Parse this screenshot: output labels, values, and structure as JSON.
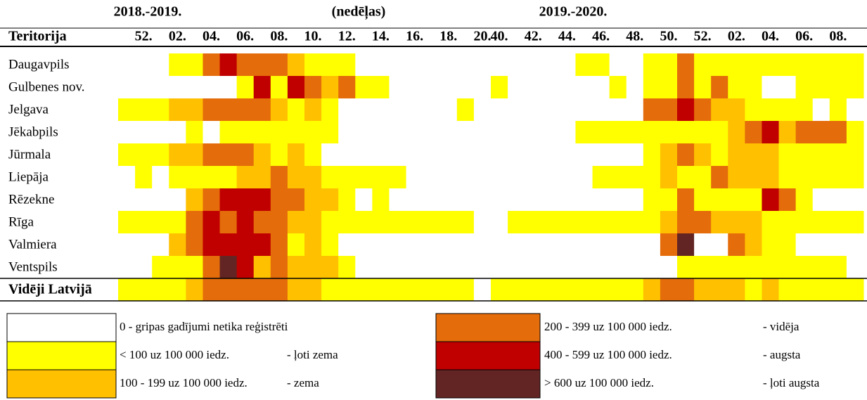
{
  "header": {
    "season1": "2018.-2019.",
    "unit": "(nedēļas)",
    "season2": "2019.-2020.",
    "territory": "Teritorija"
  },
  "weeks": [
    null,
    "52.",
    null,
    "02.",
    null,
    "04.",
    null,
    "06.",
    null,
    "08.",
    null,
    "10.",
    null,
    "12.",
    null,
    "14.",
    null,
    "16.",
    null,
    "18.",
    null,
    "20.",
    "40.",
    null,
    "42.",
    null,
    "44.",
    null,
    "46.",
    null,
    "48.",
    null,
    "50.",
    null,
    "52.",
    null,
    "02.",
    null,
    "04.",
    null,
    "06.",
    null,
    "08.",
    null
  ],
  "rows": [
    {
      "name": "Daugavpils",
      "levels": [
        0,
        0,
        0,
        1,
        1,
        3,
        4,
        3,
        3,
        3,
        2,
        1,
        1,
        1,
        0,
        0,
        0,
        0,
        0,
        0,
        0,
        0,
        0,
        0,
        0,
        0,
        0,
        1,
        1,
        0,
        0,
        1,
        1,
        3,
        1,
        1,
        1,
        1,
        1,
        1,
        1,
        1,
        1,
        1
      ]
    },
    {
      "name": "Gulbenes nov.",
      "levels": [
        0,
        0,
        0,
        0,
        0,
        0,
        0,
        1,
        4,
        1,
        4,
        3,
        2,
        3,
        1,
        1,
        0,
        0,
        0,
        0,
        0,
        0,
        1,
        0,
        0,
        0,
        0,
        0,
        0,
        1,
        0,
        1,
        1,
        3,
        1,
        3,
        1,
        1,
        0,
        0,
        1,
        1,
        1,
        1
      ]
    },
    {
      "name": "Jelgava",
      "levels": [
        1,
        1,
        1,
        2,
        2,
        3,
        3,
        3,
        3,
        2,
        1,
        2,
        1,
        0,
        0,
        0,
        0,
        0,
        0,
        0,
        1,
        0,
        0,
        0,
        0,
        0,
        0,
        0,
        0,
        0,
        0,
        3,
        3,
        4,
        3,
        2,
        2,
        1,
        1,
        1,
        1,
        0,
        1,
        0
      ]
    },
    {
      "name": "Jēkabpils",
      "levels": [
        0,
        0,
        0,
        0,
        1,
        0,
        1,
        1,
        1,
        1,
        1,
        1,
        1,
        0,
        0,
        0,
        0,
        0,
        0,
        0,
        0,
        0,
        0,
        0,
        0,
        0,
        0,
        1,
        1,
        1,
        1,
        1,
        1,
        1,
        1,
        1,
        2,
        3,
        4,
        2,
        3,
        3,
        3,
        1
      ]
    },
    {
      "name": "Jūrmala",
      "levels": [
        1,
        1,
        1,
        2,
        2,
        3,
        3,
        3,
        2,
        1,
        2,
        1,
        0,
        0,
        0,
        0,
        0,
        0,
        0,
        0,
        0,
        0,
        0,
        0,
        0,
        0,
        0,
        0,
        0,
        0,
        0,
        1,
        2,
        3,
        2,
        1,
        2,
        2,
        2,
        1,
        1,
        1,
        1,
        1
      ]
    },
    {
      "name": "Liepāja",
      "levels": [
        0,
        1,
        0,
        1,
        1,
        1,
        1,
        2,
        2,
        3,
        2,
        2,
        1,
        1,
        1,
        1,
        1,
        0,
        0,
        0,
        0,
        0,
        0,
        0,
        0,
        0,
        0,
        0,
        1,
        1,
        1,
        1,
        2,
        1,
        1,
        3,
        2,
        2,
        2,
        1,
        1,
        1,
        1,
        1
      ]
    },
    {
      "name": "Rēzekne",
      "levels": [
        0,
        0,
        0,
        0,
        2,
        3,
        4,
        4,
        4,
        3,
        3,
        2,
        2,
        1,
        0,
        1,
        0,
        0,
        0,
        0,
        0,
        0,
        0,
        0,
        0,
        0,
        0,
        0,
        0,
        0,
        0,
        1,
        1,
        3,
        1,
        1,
        1,
        1,
        4,
        3,
        1,
        0,
        0,
        0
      ]
    },
    {
      "name": "Rīga",
      "levels": [
        1,
        1,
        1,
        1,
        3,
        4,
        3,
        4,
        3,
        3,
        2,
        2,
        1,
        1,
        1,
        1,
        1,
        1,
        1,
        1,
        1,
        0,
        0,
        1,
        1,
        1,
        1,
        1,
        1,
        1,
        1,
        1,
        2,
        3,
        3,
        2,
        2,
        2,
        1,
        1,
        1,
        1,
        1,
        1
      ]
    },
    {
      "name": "Valmiera",
      "levels": [
        0,
        0,
        0,
        2,
        3,
        4,
        4,
        4,
        4,
        3,
        1,
        2,
        1,
        0,
        0,
        0,
        0,
        0,
        0,
        0,
        0,
        0,
        0,
        0,
        0,
        0,
        0,
        0,
        0,
        0,
        0,
        0,
        3,
        5,
        0,
        0,
        3,
        2,
        1,
        1,
        0,
        0,
        0,
        0
      ]
    },
    {
      "name": "Ventspils",
      "levels": [
        0,
        0,
        1,
        1,
        1,
        3,
        5,
        4,
        2,
        3,
        2,
        2,
        2,
        1,
        0,
        0,
        0,
        0,
        0,
        0,
        0,
        0,
        0,
        0,
        0,
        0,
        0,
        0,
        0,
        0,
        0,
        0,
        0,
        1,
        1,
        1,
        1,
        1,
        1,
        1,
        1,
        1,
        1,
        0
      ]
    }
  ],
  "average": {
    "name": "Vidēji Latvijā",
    "levels": [
      1,
      1,
      1,
      1,
      2,
      3,
      3,
      3,
      3,
      3,
      2,
      2,
      1,
      1,
      1,
      1,
      1,
      1,
      1,
      1,
      1,
      0,
      1,
      1,
      1,
      1,
      1,
      1,
      1,
      1,
      1,
      2,
      3,
      3,
      2,
      2,
      2,
      1,
      2,
      1,
      1,
      1,
      1,
      1
    ]
  },
  "legend": [
    {
      "color": "#FFFFFF",
      "range": "0 - gripas gadījumi netika reģistrēti"
    },
    {
      "color": "#FFFF00",
      "range": "<  100 uz 100 000 iedz.",
      "level": "- ļoti zema"
    },
    {
      "color": "#FFC000",
      "range": "100 - 199 uz 100 000 iedz.",
      "level": "- zema"
    },
    {
      "color": "#E46C0A",
      "range": "200 - 399 uz 100 000 iedz.",
      "level": "- vidēja"
    },
    {
      "color": "#C00000",
      "range": "400 - 599 uz 100 000 iedz.",
      "level": "- augsta"
    },
    {
      "color": "#632523",
      "range": ">  600 uz 100 000 iedz.",
      "level": "- ļoti augsta"
    }
  ]
}
